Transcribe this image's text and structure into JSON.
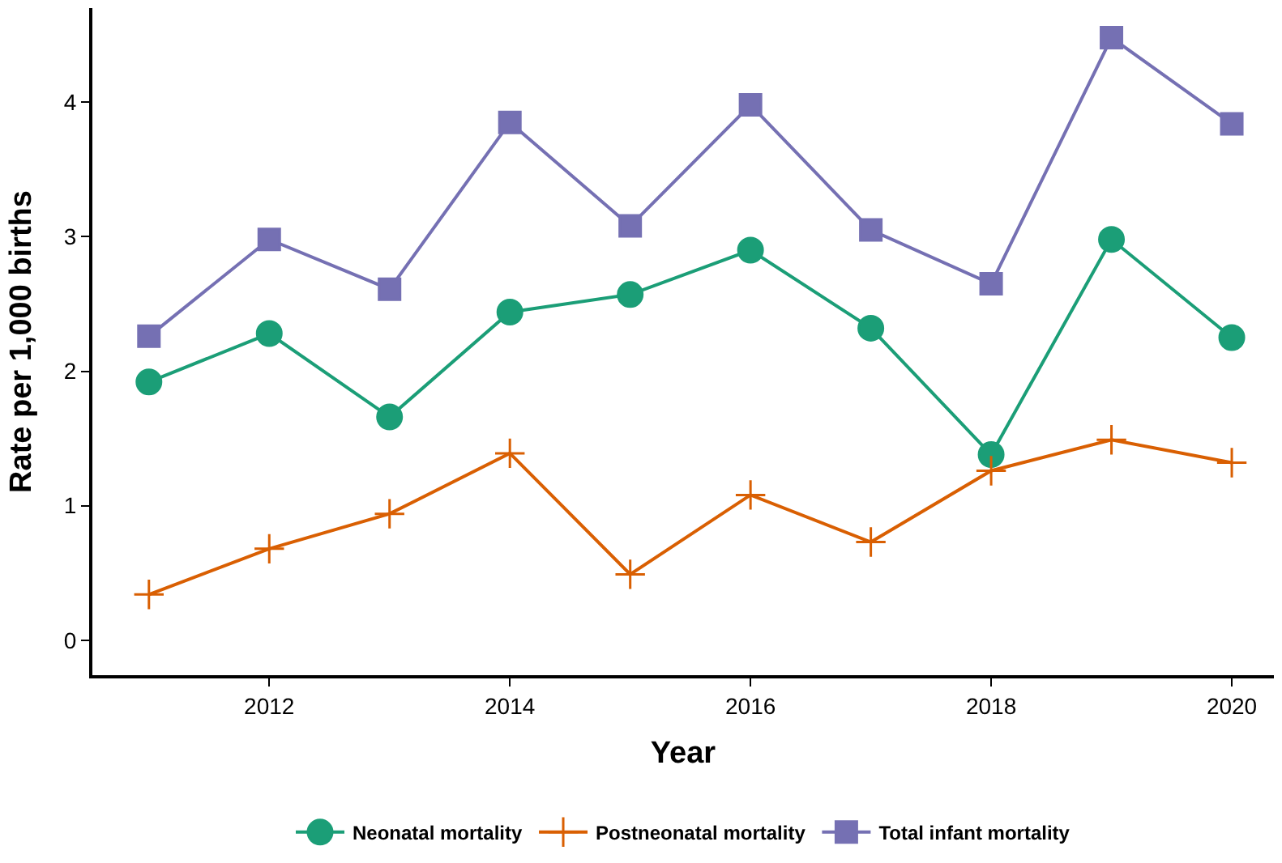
{
  "chart_data": {
    "type": "line",
    "xlabel": "Year",
    "ylabel": "Rate per 1,000 births",
    "x": [
      2011,
      2012,
      2013,
      2014,
      2015,
      2016,
      2017,
      2018,
      2019,
      2020
    ],
    "series": [
      {
        "name": "Neonatal mortality",
        "color": "#1b9e77",
        "marker": "circle",
        "values": [
          1.92,
          2.28,
          1.66,
          2.44,
          2.57,
          2.9,
          2.32,
          1.38,
          2.98,
          2.25
        ]
      },
      {
        "name": "Postneonatal mortality",
        "color": "#d95f02",
        "marker": "cross",
        "values": [
          0.34,
          0.68,
          0.94,
          1.39,
          0.49,
          1.08,
          0.73,
          1.26,
          1.49,
          1.32
        ]
      },
      {
        "name": "Total infant mortality",
        "color": "#7570b3",
        "marker": "square",
        "values": [
          2.26,
          2.98,
          2.61,
          3.85,
          3.08,
          3.98,
          3.05,
          2.65,
          4.48,
          3.84
        ]
      }
    ],
    "xlim": [
      2010.53,
      2020.35
    ],
    "xticks": [
      2012,
      2014,
      2016,
      2018,
      2020
    ],
    "ylim": [
      -0.26,
      4.7
    ],
    "yticks": [
      0,
      1,
      2,
      3,
      4
    ],
    "legend": "bottom",
    "line_style": "solid"
  }
}
